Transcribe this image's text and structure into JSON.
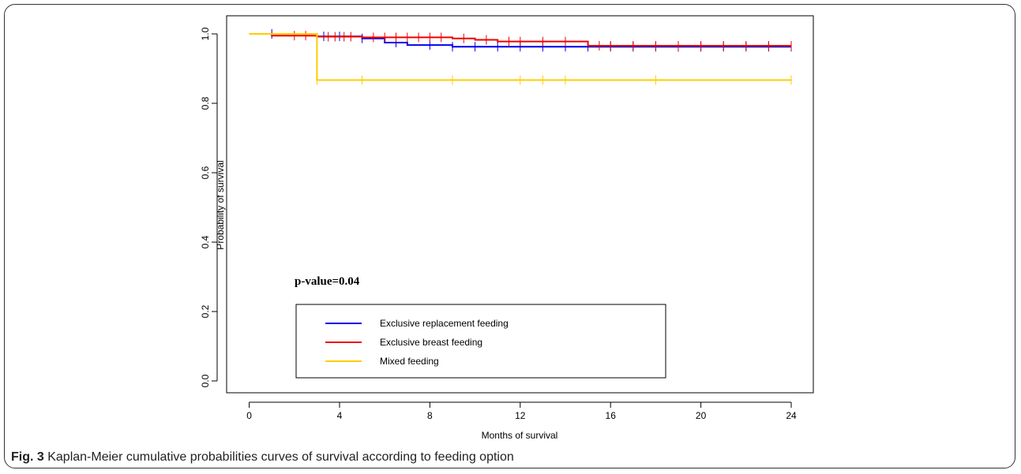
{
  "caption": {
    "label": "Fig. 3",
    "text": "Kaplan-Meier cumulative probabilities curves of survival according to feeding option"
  },
  "chart_data": {
    "type": "line",
    "step": true,
    "xlabel": "Months of survival",
    "ylabel": "Probability of survival",
    "xlim": [
      0,
      25
    ],
    "ylim": [
      -0.04,
      1.04
    ],
    "x_ticks": [
      0,
      4,
      8,
      12,
      16,
      20,
      24
    ],
    "x_tick_labels": [
      "0",
      "4",
      "8",
      "12",
      "16",
      "20",
      "24"
    ],
    "y_ticks": [
      0.0,
      0.2,
      0.4,
      0.6,
      0.8,
      1.0
    ],
    "y_tick_labels": [
      "0.0",
      "0.2",
      "0.4",
      "0.6",
      "0.8",
      "1.0"
    ],
    "grid": false,
    "legend_position": "bottom-left",
    "annotation": "p-value=0.04",
    "series": [
      {
        "name": "Exclusive replacement feeding",
        "color": "#0000ee",
        "steps": [
          [
            0,
            1.0
          ],
          [
            3,
            0.993
          ],
          [
            5,
            0.987
          ],
          [
            6,
            0.975
          ],
          [
            7,
            0.968
          ],
          [
            9,
            0.963
          ],
          [
            24,
            0.963
          ]
        ],
        "censor_x": [
          1,
          3.3,
          4,
          5,
          6.5,
          8,
          9,
          10,
          11,
          12,
          13,
          14,
          15,
          16,
          17,
          18,
          19,
          20,
          21,
          22,
          23,
          24
        ]
      },
      {
        "name": "Exclusive breast feeding",
        "color": "#ee0000",
        "steps": [
          [
            0,
            1.0
          ],
          [
            1,
            0.995
          ],
          [
            3,
            0.992
          ],
          [
            5,
            0.99
          ],
          [
            9,
            0.987
          ],
          [
            10,
            0.983
          ],
          [
            11,
            0.978
          ],
          [
            15,
            0.966
          ],
          [
            24,
            0.966
          ]
        ],
        "censor_x": [
          2,
          2.5,
          3.5,
          3.8,
          4.2,
          4.5,
          5.5,
          6,
          6.5,
          7,
          7.5,
          8,
          8.5,
          9.5,
          10.5,
          11.5,
          12,
          13,
          14,
          15.5,
          16,
          17,
          18,
          19,
          20,
          21,
          22,
          23,
          24
        ]
      },
      {
        "name": "Mixed feeding",
        "color": "#ffcc00",
        "steps": [
          [
            0,
            1.0
          ],
          [
            3,
            0.867
          ],
          [
            24,
            0.867
          ]
        ],
        "censor_x": [
          3,
          5,
          9,
          12,
          13,
          14,
          18,
          24
        ]
      }
    ]
  }
}
